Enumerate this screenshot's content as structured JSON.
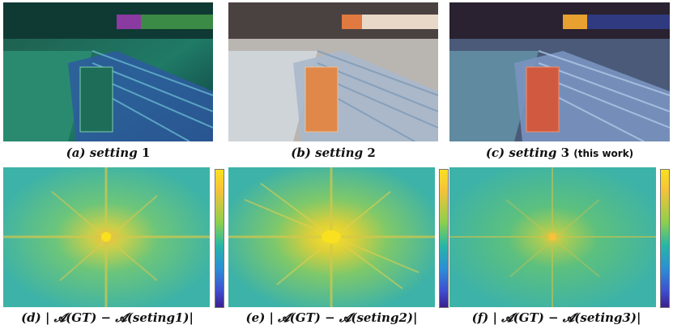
{
  "figure": {
    "row1": [
      {
        "label_prefix": "(a)",
        "label_word": "setting",
        "label_num": "1",
        "note": ""
      },
      {
        "label_prefix": "(b)",
        "label_word": "setting",
        "label_num": "2",
        "note": ""
      },
      {
        "label_prefix": "(c)",
        "label_word": "setting",
        "label_num": "3",
        "note": "(this work)"
      }
    ],
    "row2": [
      {
        "label": "(d) | 𝓐(GT) − 𝓐(seting1)|"
      },
      {
        "label": "(e) | 𝓐(GT) − 𝓐(seting2)|"
      },
      {
        "label": "(f) | 𝓐(GT) − 𝓐(seting3)|"
      }
    ]
  },
  "colors": {
    "colormap": [
      "#3b1f8f",
      "#3f4fd0",
      "#2b8fd6",
      "#27b7a6",
      "#8ed04b",
      "#f5c23a",
      "#f9e11f"
    ]
  }
}
